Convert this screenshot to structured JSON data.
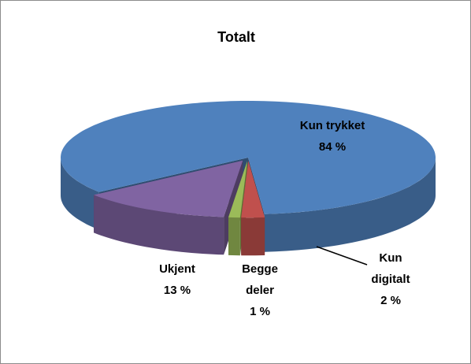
{
  "chart_data": {
    "type": "pie3d",
    "title": "Totalt",
    "categories": [
      "Kun trykket",
      "Kun digitalt",
      "Begge deler",
      "Ukjent"
    ],
    "values": [
      84,
      2,
      1,
      13
    ],
    "value_labels": [
      "84 %",
      "2 %",
      "1 %",
      "13 %"
    ],
    "colors": [
      "#4f81bd",
      "#c0504d",
      "#9bbb59",
      "#8064a2"
    ]
  }
}
